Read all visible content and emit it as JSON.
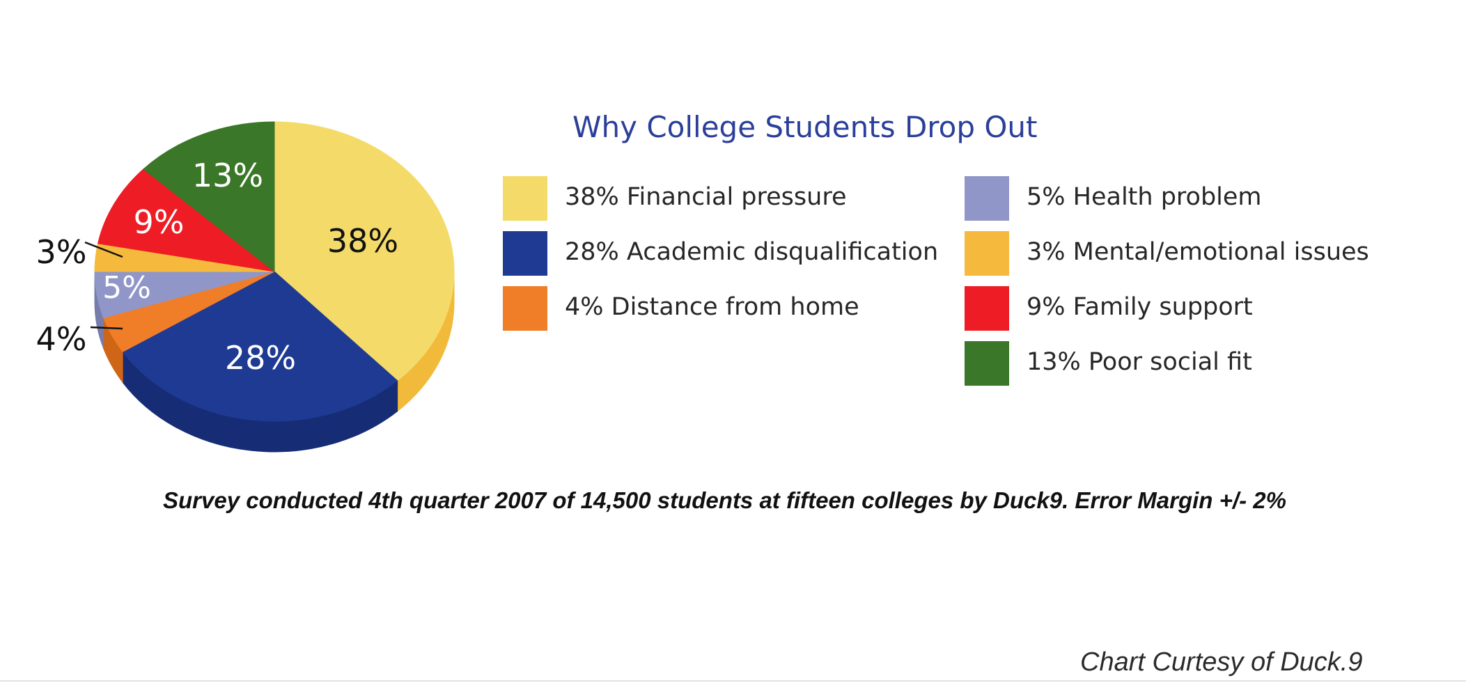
{
  "chart_data": {
    "type": "pie",
    "title": "Why College Students Drop Out",
    "slices": [
      {
        "value": 38,
        "label": "38%",
        "legend": "38% Financial pressure",
        "color": "#f4db69",
        "side": "#f2ba3a",
        "labelColor": "#111111"
      },
      {
        "value": 28,
        "label": "28%",
        "legend": "28% Academic disqualification",
        "color": "#1f3a93",
        "side": "#162c75",
        "labelColor": "#ffffff"
      },
      {
        "value": 4,
        "label": "4%",
        "legend": "4% Distance from home",
        "color": "#f07d28",
        "side": "#cf6516",
        "labelColor": "#111111"
      },
      {
        "value": 5,
        "label": "5%",
        "legend": "5% Health problem",
        "color": "#9097c8",
        "side": "#767dad",
        "labelColor": "#ffffff"
      },
      {
        "value": 3,
        "label": "3%",
        "legend": "3% Mental/emotional issues",
        "color": "#f5b93d",
        "side": "#d99a24",
        "labelColor": "#111111"
      },
      {
        "value": 9,
        "label": "9%",
        "legend": "9% Family support",
        "color": "#ee1c25",
        "side": "#c4141b",
        "labelColor": "#ffffff"
      },
      {
        "value": 13,
        "label": "13%",
        "legend": "13% Poor social fit",
        "color": "#3a7728",
        "side": "#2c5e1e",
        "labelColor": "#ffffff"
      }
    ],
    "legend_order": [
      0,
      1,
      2,
      3,
      4,
      5,
      6
    ],
    "legend_placement": "right, two columns"
  },
  "survey_note": "Survey conducted 4th quarter 2007 of 14,500 students at fifteen colleges by Duck9. Error Margin +/- 2%",
  "credit": "Chart Curtesy of Duck.9"
}
